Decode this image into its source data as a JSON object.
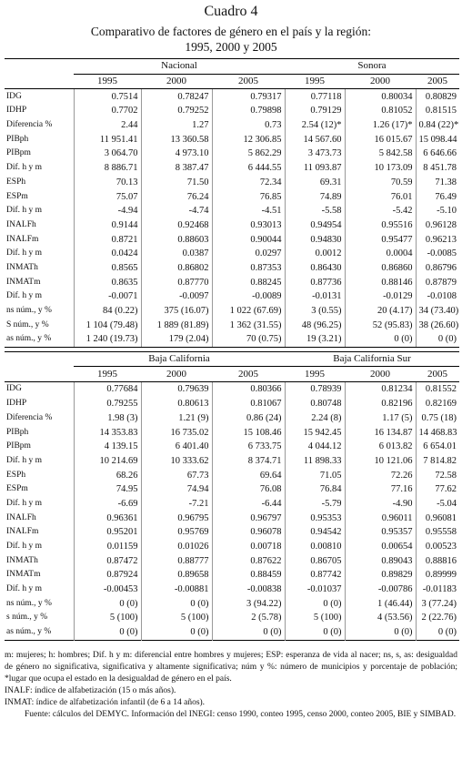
{
  "header": {
    "title": "Cuadro 4",
    "subtitle": "Comparativo de factores de género en el país y la región:",
    "subtitle2": "1995, 2000 y 2005"
  },
  "tables": [
    {
      "groups": [
        "Nacional",
        "Sonora"
      ],
      "years": [
        "1995",
        "2000",
        "2005",
        "1995",
        "2000",
        "2005"
      ],
      "rows": [
        {
          "label": "IDG",
          "values": [
            "0.7514",
            "0.78247",
            "0.79317",
            "0.77118",
            "0.80034",
            "0.80829"
          ]
        },
        {
          "label": "IDHP",
          "values": [
            "0.7702",
            "0.79252",
            "0.79898",
            "0.79129",
            "0.81052",
            "0.81515"
          ]
        },
        {
          "label": "Diferencia %",
          "values": [
            "2.44",
            "1.27",
            "0.73",
            "2.54 (12)*",
            "1.26 (17)*",
            "0.84 (22)*"
          ]
        },
        {
          "label": "PIBph",
          "values": [
            "11 951.41",
            "13 360.58",
            "12 306.85",
            "14 567.60",
            "16 015.67",
            "15 098.44"
          ]
        },
        {
          "label": "PIBpm",
          "values": [
            "3 064.70",
            "4 973.10",
            "5 862.29",
            "3 473.73",
            "5 842.58",
            "6 646.66"
          ]
        },
        {
          "label": "Dif. h y m",
          "values": [
            "8 886.71",
            "8 387.47",
            "6 444.55",
            "11 093.87",
            "10 173.09",
            "8 451.78"
          ]
        },
        {
          "label": "ESPh",
          "values": [
            "70.13",
            "71.50",
            "72.34",
            "69.31",
            "70.59",
            "71.38"
          ]
        },
        {
          "label": "ESPm",
          "values": [
            "75.07",
            "76.24",
            "76.85",
            "74.89",
            "76.01",
            "76.49"
          ]
        },
        {
          "label": "Dif. h y m",
          "values": [
            "-4.94",
            "-4.74",
            "-4.51",
            "-5.58",
            "-5.42",
            "-5.10"
          ]
        },
        {
          "label": "INALFh",
          "values": [
            "0.9144",
            "0.92468",
            "0.93013",
            "0.94954",
            "0.95516",
            "0.96128"
          ]
        },
        {
          "label": "INALFm",
          "values": [
            "0.8721",
            "0.88603",
            "0.90044",
            "0.94830",
            "0.95477",
            "0.96213"
          ]
        },
        {
          "label": "Dif. h y m",
          "values": [
            "0.0424",
            "0.0387",
            "0.0297",
            "0.0012",
            "0.0004",
            "-0.0085"
          ]
        },
        {
          "label": "INMATh",
          "values": [
            "0.8565",
            "0.86802",
            "0.87353",
            "0.86430",
            "0.86860",
            "0.86796"
          ]
        },
        {
          "label": "INMATm",
          "values": [
            "0.8635",
            "0.87770",
            "0.88245",
            "0.87736",
            "0.88146",
            "0.87879"
          ]
        },
        {
          "label": "Dif. h y m",
          "values": [
            "-0.0071",
            "-0.0097",
            "-0.0089",
            "-0.0131",
            "-0.0129",
            "-0.0108"
          ]
        },
        {
          "label": "ns núm., y %",
          "values": [
            "84 (0.22)",
            "375 (16.07)",
            "1 022 (67.69)",
            "3 (0.55)",
            "20 (4.17)",
            "34 (73.40)"
          ]
        },
        {
          "label": "S núm., y %",
          "values": [
            "1 104 (79.48)",
            "1 889 (81.89)",
            "1 362 (31.55)",
            "48 (96.25)",
            "52 (95.83)",
            "38 (26.60)"
          ]
        },
        {
          "label": "as núm., y %",
          "values": [
            "1 240 (19.73)",
            "179 (2.04)",
            "70 (0.75)",
            "19 (3.21)",
            "0 (0)",
            "0 (0)"
          ]
        }
      ]
    },
    {
      "groups": [
        "Baja California",
        "Baja California Sur"
      ],
      "years": [
        "1995",
        "2000",
        "2005",
        "1995",
        "2000",
        "2005"
      ],
      "rows": [
        {
          "label": "IDG",
          "values": [
            "0.77684",
            "0.79639",
            "0.80366",
            "0.78939",
            "0.81234",
            "0.81552"
          ]
        },
        {
          "label": "IDHP",
          "values": [
            "0.79255",
            "0.80613",
            "0.81067",
            "0.80748",
            "0.82196",
            "0.82169"
          ]
        },
        {
          "label": "Diferencia %",
          "values": [
            "1.98 (3)",
            "1.21 (9)",
            "0.86 (24)",
            "2.24 (8)",
            "1.17 (5)",
            "0.75 (18)"
          ]
        },
        {
          "label": "PIBph",
          "values": [
            "14 353.83",
            "16 735.02",
            "15 108.46",
            "15 942.45",
            "16 134.87",
            "14 468.83"
          ]
        },
        {
          "label": "PIBpm",
          "values": [
            "4 139.15",
            "6 401.40",
            "6 733.75",
            "4 044.12",
            "6 013.82",
            "6 654.01"
          ]
        },
        {
          "label": "Dif. h y m",
          "values": [
            "10 214.69",
            "10 333.62",
            "8 374.71",
            "11 898.33",
            "10 121.06",
            "7 814.82"
          ]
        },
        {
          "label": "ESPh",
          "values": [
            "68.26",
            "67.73",
            "69.64",
            "71.05",
            "72.26",
            "72.58"
          ]
        },
        {
          "label": "ESPm",
          "values": [
            "74.95",
            "74.94",
            "76.08",
            "76.84",
            "77.16",
            "77.62"
          ]
        },
        {
          "label": "Dif. h y m",
          "values": [
            "-6.69",
            "-7.21",
            "-6.44",
            "-5.79",
            "-4.90",
            "-5.04"
          ]
        },
        {
          "label": "INALFh",
          "values": [
            "0.96361",
            "0.96795",
            "0.96797",
            "0.95353",
            "0.96011",
            "0.96081"
          ]
        },
        {
          "label": "INALFm",
          "values": [
            "0.95201",
            "0.95769",
            "0.96078",
            "0.94542",
            "0.95357",
            "0.95558"
          ]
        },
        {
          "label": "Dif. h y m",
          "values": [
            "0.01159",
            "0.01026",
            "0.00718",
            "0.00810",
            "0.00654",
            "0.00523"
          ]
        },
        {
          "label": "INMATh",
          "values": [
            "0.87472",
            "0.88777",
            "0.87622",
            "0.86705",
            "0.89043",
            "0.88816"
          ]
        },
        {
          "label": "INMATm",
          "values": [
            "0.87924",
            "0.89658",
            "0.88459",
            "0.87742",
            "0.89829",
            "0.89999"
          ]
        },
        {
          "label": "Dif. h y m",
          "values": [
            "-0.00453",
            "-0.00881",
            "-0.00838",
            "-0.01037",
            "-0.00786",
            "-0.01183"
          ]
        },
        {
          "label": "ns núm., y %",
          "values": [
            "0 (0)",
            "0 (0)",
            "3 (94.22)",
            "0 (0)",
            "1 (46.44)",
            "3 (77.24)"
          ]
        },
        {
          "label": "s núm., y %",
          "values": [
            "5 (100)",
            "5 (100)",
            "2 (5.78)",
            "5 (100)",
            "4 (53.56)",
            "2 (22.76)"
          ]
        },
        {
          "label": "as núm., y %",
          "values": [
            "0 (0)",
            "0 (0)",
            "0 (0)",
            "0 (0)",
            "0 (0)",
            "0 (0)"
          ]
        }
      ]
    }
  ],
  "notes": [
    "m: mujeres; h: hombres; Dif. h y m: diferencial entre hombres y mujeres; ESP: esperanza de vida al nacer; ns, s, as: desigualdad de género no significativa, significativa y altamente significativa; núm y %: número de municipios y porcentaje de población; *lugar que ocupa el estado en la desigualdad de género en el país.",
    "INALF: índice de alfabetización (15 o más años).",
    "INMAT: índice de alfabetización infantil (de 6 a 14 años).",
    "Fuente: cálculos del DEMYC. Información del INEGI: censo 1990, conteo 1995, censo 2000, conteo 2005, BIE y SIMBAD."
  ]
}
